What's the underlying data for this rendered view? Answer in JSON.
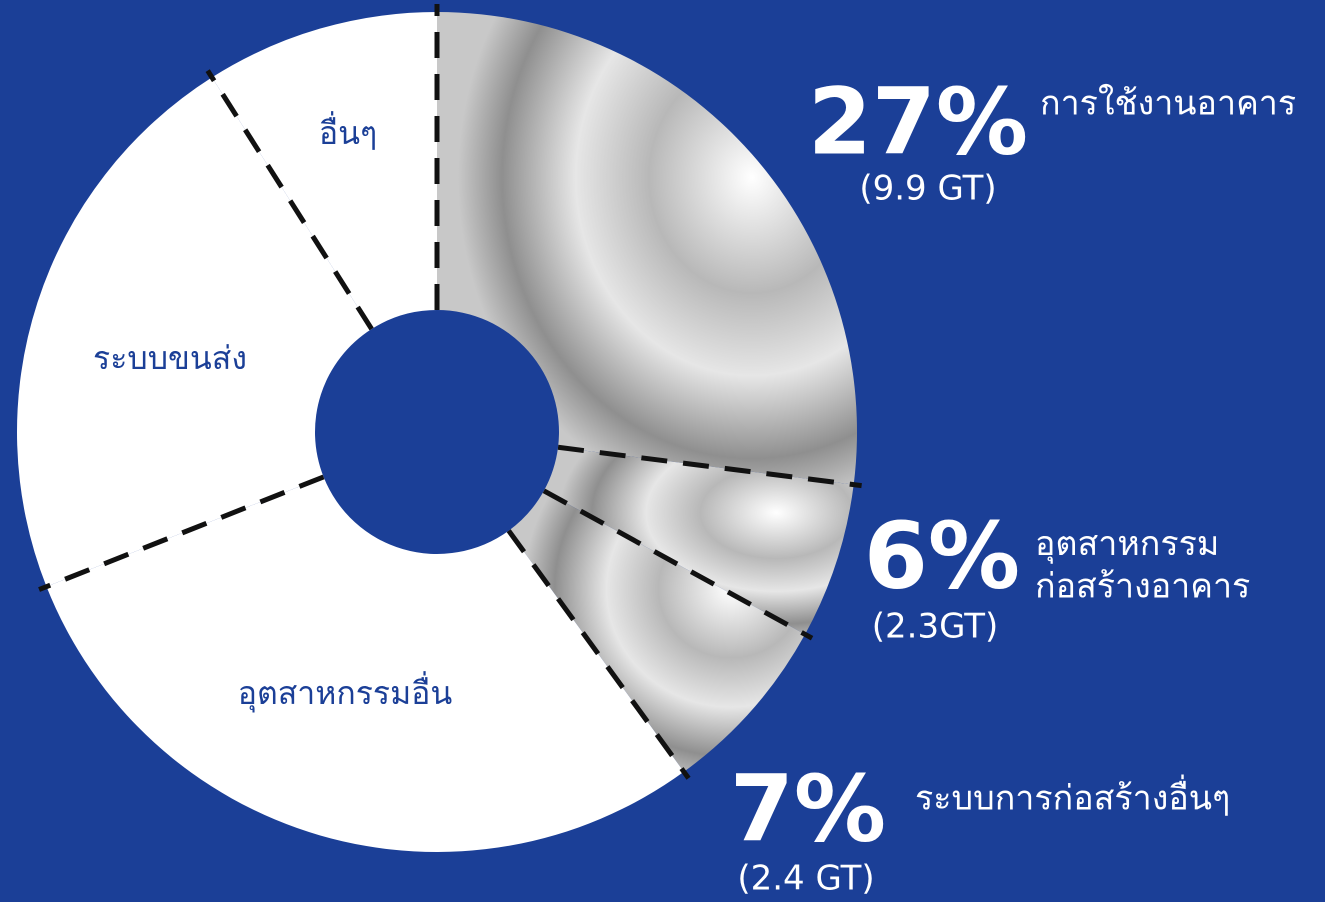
{
  "chart_data": {
    "type": "donut",
    "categories": [
      "การใช้งานอาคาร",
      "อุตสาหกรรม\nก่อสร้างอาคาร",
      "ระบบการก่อสร้างอื่นๆ",
      "อุตสาหกรรมอื่น",
      "ระบบขนส่ง",
      "อื่นๆ"
    ],
    "values": [
      27,
      6,
      7,
      29,
      22,
      9
    ],
    "value_labels": [
      "27%",
      "6%",
      "7%",
      null,
      null,
      null
    ],
    "amount_labels": [
      "(9.9 GT)",
      "(2.3GT)",
      "(2.4 GT)",
      null,
      null,
      null
    ],
    "colors": [
      "gray",
      "gray",
      "gray",
      "#ffffff",
      "#ffffff",
      "#ffffff"
    ]
  }
}
